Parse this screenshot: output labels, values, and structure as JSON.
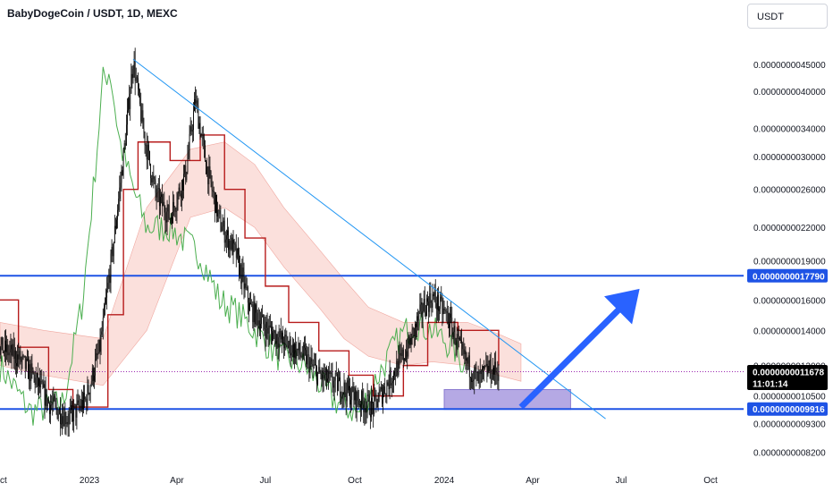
{
  "header": {
    "title": "BabyDogeCoin / USDT, 1D, MEXC",
    "currency_button": "USDT"
  },
  "colors": {
    "horizontal_line": "#1e53e5",
    "trendline": "#2196f3",
    "arrow": "#2962ff",
    "zone": "#9c8cdb",
    "candle": "#000000",
    "lagging_span": "#4caf50",
    "base_line": "#b71c1c",
    "cloud": "#f8c6c0",
    "price_line": "#9c27b0",
    "price_tag": "#000000"
  },
  "chart_data": {
    "type": "candlestick",
    "y_scale": "log",
    "ylim": [
      7.75e-10,
      5.1e-09
    ],
    "xlim": [
      "2022-10-01",
      "2024-11-04"
    ],
    "x_ticks": [
      {
        "date": "2022-10-01",
        "label": "Oct"
      },
      {
        "date": "2023-01-01",
        "label": "2023"
      },
      {
        "date": "2023-04-01",
        "label": "Apr"
      },
      {
        "date": "2023-07-01",
        "label": "Jul"
      },
      {
        "date": "2023-10-01",
        "label": "Oct"
      },
      {
        "date": "2024-01-01",
        "label": "2024"
      },
      {
        "date": "2024-04-01",
        "label": "Apr"
      },
      {
        "date": "2024-07-01",
        "label": "Jul"
      },
      {
        "date": "2024-10-01",
        "label": "Oct"
      }
    ],
    "y_ticks": [
      {
        "value": 4.5e-09,
        "label": "0.0000000045000"
      },
      {
        "value": 4e-09,
        "label": "0.0000000040000"
      },
      {
        "value": 3.4e-09,
        "label": "0.0000000034000"
      },
      {
        "value": 3e-09,
        "label": "0.0000000030000"
      },
      {
        "value": 2.6e-09,
        "label": "0.0000000026000"
      },
      {
        "value": 2.2e-09,
        "label": "0.0000000022000"
      },
      {
        "value": 1.9e-09,
        "label": "0.0000000019000"
      },
      {
        "value": 1.6e-09,
        "label": "0.0000000016000"
      },
      {
        "value": 1.4e-09,
        "label": "0.0000000014000"
      },
      {
        "value": 1.2e-09,
        "label": "0.0000000012000"
      },
      {
        "value": 1.05e-09,
        "label": "0.0000000010500"
      },
      {
        "value": 9.3e-10,
        "label": "0.0000000009300"
      },
      {
        "value": 8.2e-10,
        "label": "0.0000000008200"
      }
    ],
    "price_path": [
      [
        "2022-10-01",
        1.3e-09
      ],
      [
        "2022-10-20",
        1.24e-09
      ],
      [
        "2022-11-05",
        1.14e-09
      ],
      [
        "2022-11-20",
        1.02e-09
      ],
      [
        "2022-12-10",
        9.5e-10
      ],
      [
        "2022-12-28",
        1.03e-09
      ],
      [
        "2023-01-12",
        1.3e-09
      ],
      [
        "2023-01-25",
        2e-09
      ],
      [
        "2023-02-05",
        3e-09
      ],
      [
        "2023-02-15",
        4.6e-09
      ],
      [
        "2023-02-25",
        3.4e-09
      ],
      [
        "2023-03-10",
        2.55e-09
      ],
      [
        "2023-03-25",
        2.3e-09
      ],
      [
        "2023-04-10",
        2.8e-09
      ],
      [
        "2023-04-20",
        3.85e-09
      ],
      [
        "2023-05-01",
        2.9e-09
      ],
      [
        "2023-05-15",
        2.25e-09
      ],
      [
        "2023-06-01",
        1.95e-09
      ],
      [
        "2023-06-15",
        1.55e-09
      ],
      [
        "2023-07-01",
        1.42e-09
      ],
      [
        "2023-07-20",
        1.33e-09
      ],
      [
        "2023-08-10",
        1.25e-09
      ],
      [
        "2023-08-25",
        1.15e-09
      ],
      [
        "2023-09-15",
        1.1e-09
      ],
      [
        "2023-10-05",
        1.03e-09
      ],
      [
        "2023-10-20",
        1e-09
      ],
      [
        "2023-11-05",
        1.12e-09
      ],
      [
        "2023-11-25",
        1.3e-09
      ],
      [
        "2023-12-10",
        1.55e-09
      ],
      [
        "2023-12-20",
        1.62e-09
      ],
      [
        "2024-01-05",
        1.48e-09
      ],
      [
        "2024-01-20",
        1.25e-09
      ],
      [
        "2024-02-05",
        1.12e-09
      ],
      [
        "2024-02-15",
        1.18e-09
      ],
      [
        "2024-02-26",
        1.1678e-09
      ]
    ],
    "lagging_span_path": [
      [
        "2022-10-01",
        1.2e-09
      ],
      [
        "2022-11-01",
        9.8e-10
      ],
      [
        "2022-12-05",
        1.02e-09
      ],
      [
        "2022-12-25",
        1.6e-09
      ],
      [
        "2023-01-05",
        2.6e-09
      ],
      [
        "2023-01-15",
        4.2e-09
      ],
      [
        "2023-01-22",
        4.4e-09
      ],
      [
        "2023-02-01",
        3.2e-09
      ],
      [
        "2023-02-15",
        2.6e-09
      ],
      [
        "2023-03-01",
        2.2e-09
      ],
      [
        "2023-03-25",
        2.2e-09
      ],
      [
        "2023-04-25",
        1.95e-09
      ],
      [
        "2023-05-15",
        1.6e-09
      ],
      [
        "2023-06-01",
        1.52e-09
      ],
      [
        "2023-06-20",
        1.4e-09
      ],
      [
        "2023-07-15",
        1.25e-09
      ],
      [
        "2023-08-10",
        1.2e-09
      ],
      [
        "2023-09-10",
        1.03e-09
      ],
      [
        "2023-10-05",
        9.7e-10
      ],
      [
        "2023-10-25",
        1.15e-09
      ],
      [
        "2023-11-15",
        1.35e-09
      ],
      [
        "2023-12-01",
        1.45e-09
      ],
      [
        "2023-12-20",
        1.4e-09
      ],
      [
        "2024-01-10",
        1.3e-09
      ],
      [
        "2024-01-22",
        1.2e-09
      ]
    ],
    "base_line_steps": [
      [
        "2022-10-01",
        1.6e-09
      ],
      [
        "2022-10-20",
        1.3e-09
      ],
      [
        "2022-11-20",
        1.08e-09
      ],
      [
        "2022-12-15",
        1e-09
      ],
      [
        "2023-01-20",
        1.5e-09
      ],
      [
        "2023-02-05",
        2.6e-09
      ],
      [
        "2023-02-20",
        3.2e-09
      ],
      [
        "2023-03-25",
        2.95e-09
      ],
      [
        "2023-04-25",
        3.3e-09
      ],
      [
        "2023-05-20",
        2.6e-09
      ],
      [
        "2023-06-10",
        2.1e-09
      ],
      [
        "2023-07-01",
        1.7e-09
      ],
      [
        "2023-07-25",
        1.45e-09
      ],
      [
        "2023-08-25",
        1.28e-09
      ],
      [
        "2023-09-25",
        1.15e-09
      ],
      [
        "2023-10-20",
        1.05e-09
      ],
      [
        "2023-11-20",
        1.2e-09
      ],
      [
        "2023-12-15",
        1.45e-09
      ],
      [
        "2024-01-15",
        1.4e-09
      ],
      [
        "2024-02-26",
        1.2e-09
      ]
    ],
    "cloud_upper": [
      [
        "2022-10-01",
        1.45e-09
      ],
      [
        "2022-11-15",
        1.4e-09
      ],
      [
        "2023-01-15",
        1.35e-09
      ],
      [
        "2023-03-01",
        2.4e-09
      ],
      [
        "2023-04-15",
        3.1e-09
      ],
      [
        "2023-05-20",
        3.2e-09
      ],
      [
        "2023-06-20",
        2.9e-09
      ],
      [
        "2023-07-20",
        2.4e-09
      ],
      [
        "2023-08-25",
        2e-09
      ],
      [
        "2023-09-20",
        1.75e-09
      ],
      [
        "2023-10-15",
        1.55e-09
      ],
      [
        "2023-11-20",
        1.45e-09
      ],
      [
        "2023-12-20",
        1.45e-09
      ],
      [
        "2024-01-25",
        1.45e-09
      ],
      [
        "2024-02-25",
        1.38e-09
      ],
      [
        "2024-03-20",
        1.32e-09
      ]
    ],
    "cloud_lower": [
      [
        "2022-10-01",
        1.2e-09
      ],
      [
        "2022-11-15",
        1.15e-09
      ],
      [
        "2023-01-15",
        1.1e-09
      ],
      [
        "2023-03-01",
        1.4e-09
      ],
      [
        "2023-04-15",
        2.3e-09
      ],
      [
        "2023-05-20",
        2.4e-09
      ],
      [
        "2023-06-20",
        2.2e-09
      ],
      [
        "2023-07-20",
        1.85e-09
      ],
      [
        "2023-08-25",
        1.55e-09
      ],
      [
        "2023-09-20",
        1.35e-09
      ],
      [
        "2023-10-15",
        1.25e-09
      ],
      [
        "2023-11-20",
        1.2e-09
      ],
      [
        "2023-12-20",
        1.22e-09
      ],
      [
        "2024-01-25",
        1.2e-09
      ],
      [
        "2024-02-25",
        1.15e-09
      ],
      [
        "2024-03-20",
        1.12e-09
      ]
    ],
    "horizontal_levels": [
      {
        "value": 1.779e-09,
        "label": "0.0000000017790"
      },
      {
        "value": 9.916e-10,
        "label": "0.0000000009916"
      }
    ],
    "current_price": {
      "value": 1.1678e-09,
      "label": "0.0000000011678",
      "countdown": "11:01:14"
    },
    "trendline": {
      "start": [
        "2023-02-15",
        4.6e-09
      ],
      "end": [
        "2024-06-15",
        9.5e-10
      ]
    },
    "support_zone": {
      "x0": "2024-01-01",
      "x1": "2024-05-10",
      "y0": 9.9e-10,
      "y1": 1.08e-09
    },
    "projection_arrow": {
      "start": [
        "2024-03-20",
        1e-09
      ],
      "end": [
        "2024-07-20",
        1.68e-09
      ]
    }
  }
}
